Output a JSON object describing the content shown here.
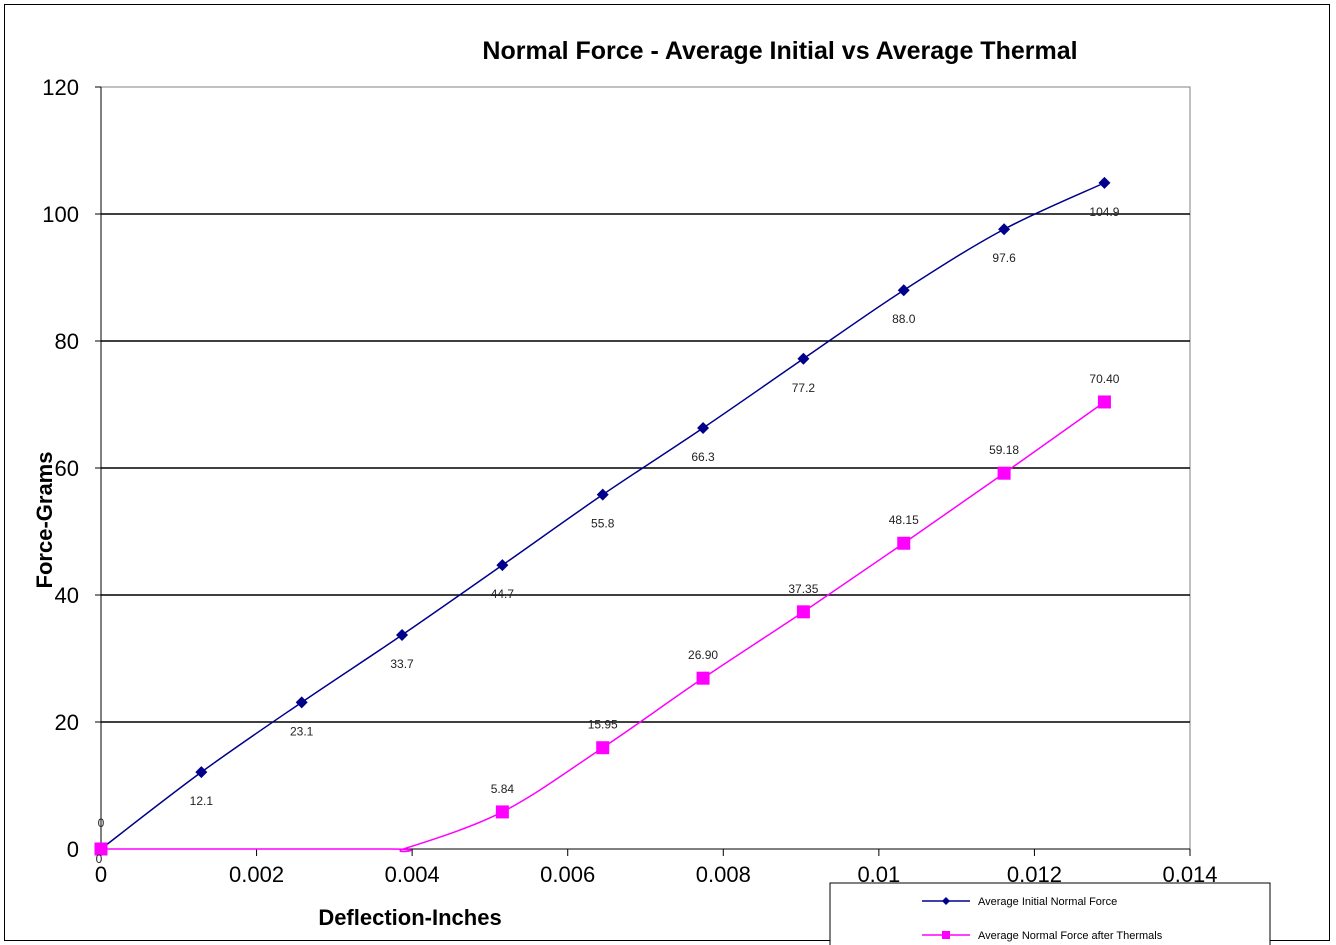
{
  "chart_data": {
    "type": "line",
    "title": "Normal Force - Average Initial vs Average Thermal",
    "xlabel": "Deflection-Inches",
    "ylabel": "Force-Grams",
    "xlim": [
      0,
      0.014
    ],
    "ylim": [
      0,
      120
    ],
    "x_ticks": [
      "0",
      "0.002",
      "0.004",
      "0.006",
      "0.008",
      "0.01",
      "0.012",
      "0.014"
    ],
    "y_ticks": [
      "0",
      "20",
      "40",
      "60",
      "80",
      "100",
      "120"
    ],
    "grid": "horizontal",
    "legend_position": "bottom-right",
    "series": [
      {
        "name": "Average Initial Normal Force",
        "color": "#00008B",
        "marker": "diamond",
        "x": [
          0,
          0.00129,
          0.00258,
          0.00387,
          0.00516,
          0.00645,
          0.00774,
          0.00903,
          0.01032,
          0.01161,
          0.0129
        ],
        "values": [
          0,
          12.1,
          23.1,
          33.7,
          44.7,
          55.8,
          66.3,
          77.2,
          88.0,
          97.6,
          104.9
        ],
        "labels": [
          "0",
          "12.1",
          "23.1",
          "33.7",
          "44.7",
          "55.8",
          "66.3",
          "77.2",
          "88.0",
          "97.6",
          "104.9"
        ]
      },
      {
        "name": "Average Normal Force after Thermals",
        "color": "#FF00FF",
        "marker": "square",
        "x": [
          0,
          0.00516,
          0.00645,
          0.00774,
          0.00903,
          0.01032,
          0.01161,
          0.0129
        ],
        "values": [
          0,
          5.84,
          15.95,
          26.9,
          37.35,
          48.15,
          59.18,
          70.4
        ],
        "labels": [
          "0",
          "5.84",
          "15.95",
          "26.90",
          "37.35",
          "48.15",
          "59.18",
          "70.40"
        ]
      }
    ]
  }
}
